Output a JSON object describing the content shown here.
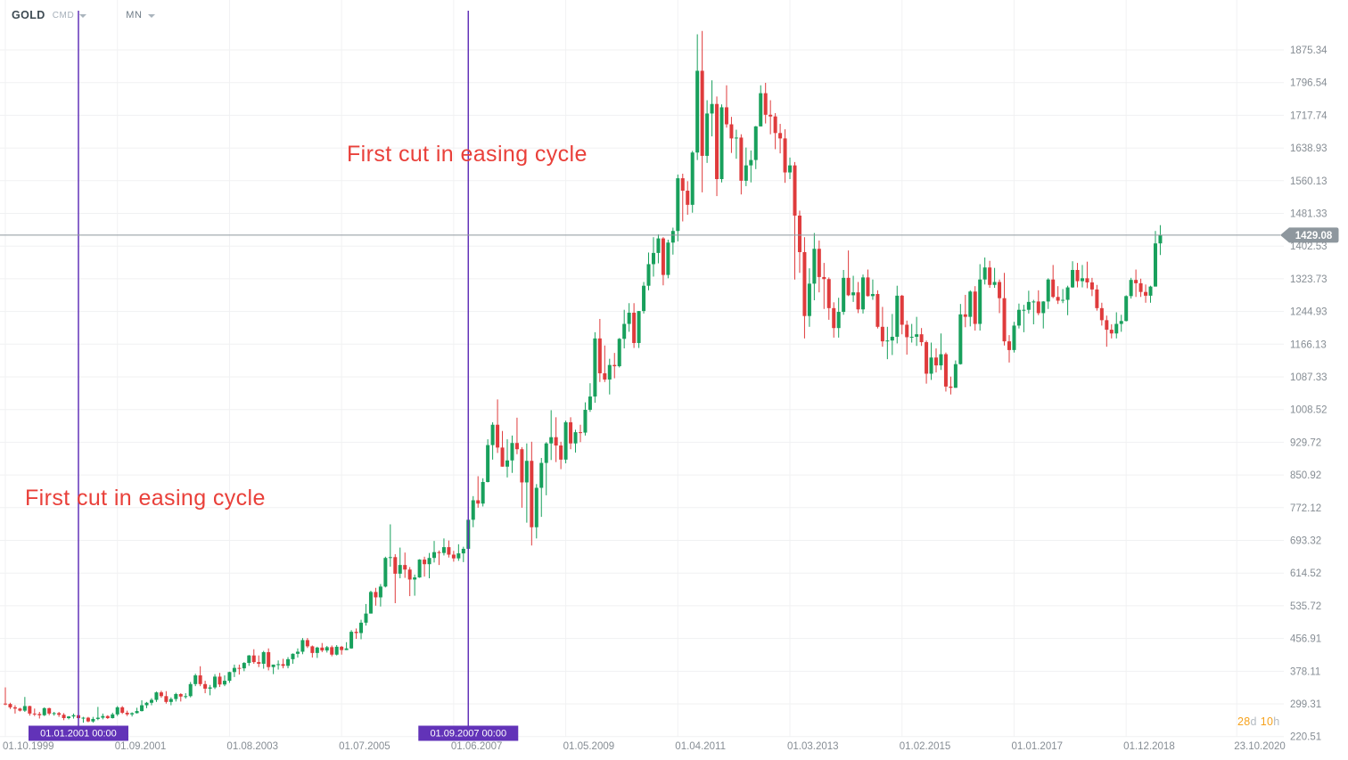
{
  "header": {
    "symbol": "GOLD",
    "market": "CMD",
    "timeframe": "MN"
  },
  "annotations": [
    "First cut in easing cycle",
    "First cut in easing cycle"
  ],
  "event_markers": [
    {
      "label": "01.01.2001 00:00",
      "month": 15
    },
    {
      "label": "01.09.2007 00:00",
      "month": 95
    }
  ],
  "countdown": {
    "days": "28",
    "days_unit": "d",
    "hours": "10",
    "hours_unit": "h"
  },
  "chart_data": {
    "type": "candlestick",
    "symbol": "GOLD",
    "timeframe": "MN",
    "start": "1999-10",
    "current_price": "1429.08",
    "up_color": "#18a05c",
    "down_color": "#df3b3c",
    "grid_color_h": "#f0f1f2",
    "grid_color_v": "#f2f2f3",
    "event_line_color": "#6233b8",
    "price_line_color": "#8e979e",
    "ylim": [
      220.51,
      1875.34
    ],
    "price_ticks": [
      "1875.34",
      "1796.54",
      "1717.74",
      "1638.93",
      "1560.13",
      "1481.33",
      "1402.53",
      "1323.73",
      "1244.93",
      "1166.13",
      "1087.33",
      "1008.52",
      "929.72",
      "850.92",
      "772.12",
      "693.32",
      "614.52",
      "535.72",
      "456.91",
      "378.11",
      "299.31",
      "220.51"
    ],
    "time_ticks": [
      {
        "label": "01.10.1999",
        "month": 0
      },
      {
        "label": "01.09.2001",
        "month": 23
      },
      {
        "label": "01.08.2003",
        "month": 46
      },
      {
        "label": "01.07.2005",
        "month": 69
      },
      {
        "label": "01.06.2007",
        "month": 92
      },
      {
        "label": "01.05.2009",
        "month": 115
      },
      {
        "label": "01.04.2011",
        "month": 138
      },
      {
        "label": "01.03.2013",
        "month": 161
      },
      {
        "label": "01.02.2015",
        "month": 184
      },
      {
        "label": "01.01.2017",
        "month": 207
      },
      {
        "label": "01.12.2018",
        "month": 230
      },
      {
        "label": "23.10.2020",
        "month": 252.7
      }
    ],
    "ohlc": [
      [
        300,
        339,
        296,
        299
      ],
      [
        299,
        302,
        287,
        291
      ],
      [
        291,
        296,
        276,
        288
      ],
      [
        288,
        290,
        281,
        283
      ],
      [
        283,
        316,
        280,
        294
      ],
      [
        294,
        295,
        271,
        276
      ],
      [
        276,
        288,
        270,
        275
      ],
      [
        275,
        280,
        264,
        272
      ],
      [
        272,
        291,
        270,
        289
      ],
      [
        289,
        290,
        272,
        276
      ],
      [
        276,
        280,
        271,
        277
      ],
      [
        277,
        280,
        268,
        273
      ],
      [
        273,
        277,
        260,
        265
      ],
      [
        265,
        270,
        262,
        269
      ],
      [
        269,
        276,
        264,
        272
      ],
      [
        272,
        272,
        255,
        265
      ],
      [
        265,
        268,
        254,
        266
      ],
      [
        266,
        268,
        255,
        257
      ],
      [
        257,
        268,
        254,
        263
      ],
      [
        263,
        292,
        260,
        266
      ],
      [
        266,
        276,
        262,
        270
      ],
      [
        270,
        272,
        263,
        265
      ],
      [
        265,
        278,
        264,
        274
      ],
      [
        274,
        294,
        270,
        291
      ],
      [
        291,
        294,
        275,
        278
      ],
      [
        278,
        283,
        270,
        274
      ],
      [
        274,
        279,
        269,
        277
      ],
      [
        277,
        290,
        276,
        282
      ],
      [
        282,
        308,
        281,
        296
      ],
      [
        296,
        304,
        289,
        302
      ],
      [
        302,
        313,
        296,
        309
      ],
      [
        309,
        329,
        304,
        327
      ],
      [
        327,
        331,
        314,
        318
      ],
      [
        318,
        330,
        300,
        304
      ],
      [
        304,
        315,
        296,
        311
      ],
      [
        311,
        326,
        305,
        323
      ],
      [
        323,
        325,
        305,
        317
      ],
      [
        317,
        325,
        312,
        318
      ],
      [
        318,
        352,
        315,
        347
      ],
      [
        347,
        372,
        342,
        368
      ],
      [
        368,
        390,
        342,
        347
      ],
      [
        347,
        355,
        325,
        336
      ],
      [
        336,
        345,
        320,
        339
      ],
      [
        339,
        371,
        335,
        365
      ],
      [
        365,
        374,
        340,
        346
      ],
      [
        346,
        368,
        342,
        355
      ],
      [
        355,
        377,
        350,
        376
      ],
      [
        376,
        394,
        364,
        386
      ],
      [
        386,
        394,
        370,
        385
      ],
      [
        385,
        400,
        378,
        398
      ],
      [
        398,
        417,
        391,
        416
      ],
      [
        416,
        431,
        396,
        400
      ],
      [
        400,
        416,
        388,
        396
      ],
      [
        396,
        427,
        384,
        424
      ],
      [
        424,
        433,
        380,
        388
      ],
      [
        388,
        394,
        371,
        394
      ],
      [
        394,
        404,
        382,
        395
      ],
      [
        395,
        408,
        385,
        391
      ],
      [
        391,
        412,
        385,
        407
      ],
      [
        407,
        421,
        396,
        420
      ],
      [
        420,
        433,
        411,
        425
      ],
      [
        425,
        458,
        419,
        453
      ],
      [
        453,
        458,
        434,
        438
      ],
      [
        438,
        440,
        411,
        422
      ],
      [
        422,
        437,
        410,
        435
      ],
      [
        435,
        446,
        424,
        428
      ],
      [
        428,
        439,
        423,
        436
      ],
      [
        436,
        440,
        414,
        418
      ],
      [
        418,
        441,
        416,
        437
      ],
      [
        437,
        439,
        418,
        429
      ],
      [
        429,
        448,
        429,
        433
      ],
      [
        433,
        477,
        432,
        473
      ],
      [
        473,
        481,
        456,
        470
      ],
      [
        470,
        502,
        455,
        495
      ],
      [
        495,
        540,
        488,
        517
      ],
      [
        517,
        572,
        517,
        569
      ],
      [
        569,
        579,
        536,
        556
      ],
      [
        556,
        588,
        534,
        582
      ],
      [
        582,
        654,
        580,
        651
      ],
      [
        651,
        732,
        630,
        653
      ],
      [
        653,
        660,
        542,
        613
      ],
      [
        613,
        676,
        602,
        634
      ],
      [
        634,
        664,
        603,
        623
      ],
      [
        623,
        629,
        559,
        599
      ],
      [
        599,
        611,
        560,
        604
      ],
      [
        604,
        648,
        603,
        647
      ],
      [
        647,
        654,
        606,
        636
      ],
      [
        636,
        663,
        602,
        651
      ],
      [
        651,
        692,
        640,
        665
      ],
      [
        665,
        669,
        634,
        663
      ],
      [
        663,
        698,
        657,
        677
      ],
      [
        677,
        693,
        652,
        659
      ],
      [
        659,
        668,
        642,
        650
      ],
      [
        650,
        684,
        644,
        662
      ],
      [
        662,
        678,
        641,
        673
      ],
      [
        673,
        747,
        670,
        743
      ],
      [
        743,
        800,
        725,
        790
      ],
      [
        790,
        848,
        772,
        782
      ],
      [
        782,
        843,
        775,
        834
      ],
      [
        834,
        937,
        833,
        923
      ],
      [
        923,
        978,
        888,
        972
      ],
      [
        972,
        1033,
        904,
        917
      ],
      [
        917,
        957,
        871,
        871
      ],
      [
        871,
        937,
        845,
        886
      ],
      [
        886,
        946,
        856,
        928
      ],
      [
        928,
        989,
        901,
        913
      ],
      [
        913,
        918,
        772,
        833
      ],
      [
        833,
        927,
        736,
        885
      ],
      [
        885,
        931,
        681,
        725
      ],
      [
        725,
        829,
        698,
        820
      ],
      [
        820,
        892,
        750,
        880
      ],
      [
        880,
        930,
        802,
        927
      ],
      [
        927,
        1007,
        887,
        942
      ],
      [
        942,
        990,
        882,
        922
      ],
      [
        922,
        931,
        865,
        888
      ],
      [
        888,
        982,
        879,
        978
      ],
      [
        978,
        990,
        913,
        927
      ],
      [
        927,
        960,
        905,
        954
      ],
      [
        954,
        972,
        930,
        953
      ],
      [
        953,
        1026,
        946,
        1008
      ],
      [
        1008,
        1072,
        1003,
        1040
      ],
      [
        1040,
        1195,
        1025,
        1180
      ],
      [
        1180,
        1227,
        1075,
        1096
      ],
      [
        1096,
        1163,
        1075,
        1081
      ],
      [
        1081,
        1131,
        1045,
        1116
      ],
      [
        1116,
        1145,
        1084,
        1113
      ],
      [
        1113,
        1181,
        1110,
        1179
      ],
      [
        1179,
        1249,
        1156,
        1215
      ],
      [
        1215,
        1265,
        1196,
        1242
      ],
      [
        1242,
        1265,
        1157,
        1169
      ],
      [
        1169,
        1246,
        1157,
        1246
      ],
      [
        1246,
        1316,
        1240,
        1307
      ],
      [
        1307,
        1387,
        1296,
        1359
      ],
      [
        1359,
        1424,
        1329,
        1386
      ],
      [
        1386,
        1431,
        1361,
        1421
      ],
      [
        1421,
        1424,
        1308,
        1333
      ],
      [
        1333,
        1418,
        1325,
        1411
      ],
      [
        1411,
        1447,
        1382,
        1439
      ],
      [
        1439,
        1575,
        1414,
        1566
      ],
      [
        1566,
        1577,
        1462,
        1536
      ],
      [
        1536,
        1559,
        1478,
        1502
      ],
      [
        1502,
        1632,
        1483,
        1628
      ],
      [
        1628,
        1913,
        1610,
        1825
      ],
      [
        1825,
        1921,
        1532,
        1620
      ],
      [
        1620,
        1754,
        1603,
        1722
      ],
      [
        1722,
        1802,
        1667,
        1745
      ],
      [
        1745,
        1763,
        1523,
        1564
      ],
      [
        1564,
        1744,
        1556,
        1737
      ],
      [
        1737,
        1790,
        1688,
        1696
      ],
      [
        1696,
        1714,
        1627,
        1662
      ],
      [
        1662,
        1683,
        1613,
        1664
      ],
      [
        1664,
        1672,
        1527,
        1560
      ],
      [
        1560,
        1640,
        1547,
        1597
      ],
      [
        1597,
        1633,
        1556,
        1610
      ],
      [
        1610,
        1692,
        1588,
        1691
      ],
      [
        1691,
        1790,
        1691,
        1771
      ],
      [
        1771,
        1796,
        1698,
        1719
      ],
      [
        1719,
        1754,
        1672,
        1715
      ],
      [
        1715,
        1723,
        1636,
        1675
      ],
      [
        1675,
        1697,
        1626,
        1662
      ],
      [
        1662,
        1684,
        1555,
        1580
      ],
      [
        1580,
        1616,
        1564,
        1597
      ],
      [
        1597,
        1605,
        1322,
        1476
      ],
      [
        1476,
        1488,
        1338,
        1388
      ],
      [
        1388,
        1424,
        1180,
        1234
      ],
      [
        1234,
        1349,
        1208,
        1312
      ],
      [
        1312,
        1434,
        1272,
        1396
      ],
      [
        1396,
        1416,
        1291,
        1328
      ],
      [
        1328,
        1362,
        1251,
        1323
      ],
      [
        1323,
        1327,
        1225,
        1253
      ],
      [
        1253,
        1267,
        1182,
        1205
      ],
      [
        1205,
        1278,
        1182,
        1244
      ],
      [
        1244,
        1345,
        1237,
        1326
      ],
      [
        1326,
        1392,
        1282,
        1284
      ],
      [
        1284,
        1331,
        1268,
        1291
      ],
      [
        1291,
        1316,
        1241,
        1250
      ],
      [
        1250,
        1334,
        1240,
        1327
      ],
      [
        1327,
        1346,
        1281,
        1282
      ],
      [
        1282,
        1322,
        1273,
        1287
      ],
      [
        1287,
        1296,
        1204,
        1208
      ],
      [
        1208,
        1256,
        1160,
        1173
      ],
      [
        1173,
        1208,
        1130,
        1175
      ],
      [
        1175,
        1239,
        1140,
        1184
      ],
      [
        1184,
        1307,
        1168,
        1283
      ],
      [
        1283,
        1285,
        1190,
        1213
      ],
      [
        1213,
        1223,
        1141,
        1183
      ],
      [
        1183,
        1215,
        1170,
        1184
      ],
      [
        1184,
        1232,
        1162,
        1190
      ],
      [
        1190,
        1205,
        1162,
        1171
      ],
      [
        1171,
        1175,
        1071,
        1095
      ],
      [
        1095,
        1170,
        1080,
        1134
      ],
      [
        1134,
        1156,
        1098,
        1115
      ],
      [
        1115,
        1192,
        1104,
        1142
      ],
      [
        1142,
        1146,
        1052,
        1064
      ],
      [
        1064,
        1088,
        1045,
        1061
      ],
      [
        1061,
        1127,
        1061,
        1118
      ],
      [
        1118,
        1263,
        1117,
        1238
      ],
      [
        1238,
        1285,
        1207,
        1232
      ],
      [
        1232,
        1296,
        1209,
        1293
      ],
      [
        1293,
        1306,
        1199,
        1215
      ],
      [
        1215,
        1359,
        1199,
        1322
      ],
      [
        1322,
        1375,
        1310,
        1351
      ],
      [
        1351,
        1367,
        1302,
        1309
      ],
      [
        1309,
        1350,
        1302,
        1316
      ],
      [
        1316,
        1322,
        1241,
        1277
      ],
      [
        1277,
        1338,
        1163,
        1173
      ],
      [
        1173,
        1188,
        1122,
        1152
      ],
      [
        1152,
        1220,
        1146,
        1211
      ],
      [
        1211,
        1264,
        1204,
        1249
      ],
      [
        1249,
        1261,
        1195,
        1249
      ],
      [
        1249,
        1295,
        1240,
        1268
      ],
      [
        1268,
        1273,
        1214,
        1269
      ],
      [
        1269,
        1296,
        1236,
        1241
      ],
      [
        1241,
        1270,
        1204,
        1269
      ],
      [
        1269,
        1325,
        1251,
        1322
      ],
      [
        1322,
        1357,
        1277,
        1280
      ],
      [
        1280,
        1306,
        1263,
        1271
      ],
      [
        1271,
        1299,
        1265,
        1273
      ],
      [
        1273,
        1307,
        1236,
        1303
      ],
      [
        1303,
        1366,
        1302,
        1345
      ],
      [
        1345,
        1362,
        1303,
        1318
      ],
      [
        1318,
        1357,
        1303,
        1325
      ],
      [
        1325,
        1365,
        1301,
        1315
      ],
      [
        1315,
        1326,
        1282,
        1298
      ],
      [
        1298,
        1309,
        1247,
        1253
      ],
      [
        1253,
        1266,
        1211,
        1224
      ],
      [
        1224,
        1235,
        1160,
        1201
      ],
      [
        1201,
        1214,
        1180,
        1192
      ],
      [
        1192,
        1243,
        1180,
        1215
      ],
      [
        1215,
        1237,
        1196,
        1222
      ],
      [
        1222,
        1284,
        1221,
        1282
      ],
      [
        1282,
        1326,
        1276,
        1321
      ],
      [
        1321,
        1346,
        1280,
        1313
      ],
      [
        1313,
        1324,
        1280,
        1292
      ],
      [
        1292,
        1310,
        1266,
        1283
      ],
      [
        1283,
        1307,
        1266,
        1305
      ],
      [
        1305,
        1439,
        1305,
        1409
      ],
      [
        1409,
        1453,
        1381,
        1429
      ]
    ]
  }
}
